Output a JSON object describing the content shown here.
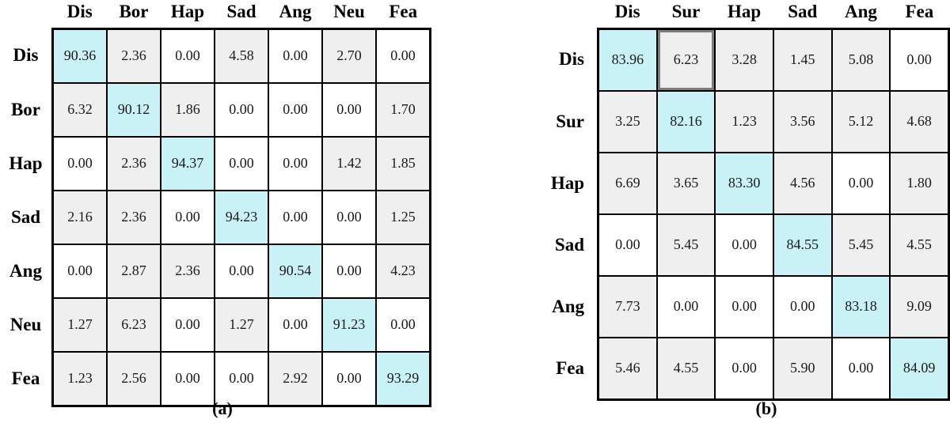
{
  "colors": {
    "diagonal_fill": "#c9f2f7",
    "nonzero_fill": "#efefef",
    "zero_fill": "#ffffff",
    "grid_border": "#000000",
    "outlined_cell_border": "#7d7d7d"
  },
  "chart_data": [
    {
      "type": "heatmap",
      "id": "a",
      "caption": "(a)",
      "col_labels": [
        "Dis",
        "Bor",
        "Hap",
        "Sad",
        "Ang",
        "Neu",
        "Fea"
      ],
      "row_labels": [
        "Dis",
        "Bor",
        "Hap",
        "Sad",
        "Ang",
        "Neu",
        "Fea"
      ],
      "values": [
        [
          90.36,
          2.36,
          0.0,
          4.58,
          0.0,
          2.7,
          0.0
        ],
        [
          6.32,
          90.12,
          1.86,
          0.0,
          0.0,
          0.0,
          1.7
        ],
        [
          0.0,
          2.36,
          94.37,
          0.0,
          0.0,
          1.42,
          1.85
        ],
        [
          2.16,
          2.36,
          0.0,
          94.23,
          0.0,
          0.0,
          1.25
        ],
        [
          0.0,
          2.87,
          2.36,
          0.0,
          90.54,
          0.0,
          4.23
        ],
        [
          1.27,
          6.23,
          0.0,
          1.27,
          0.0,
          91.23,
          0.0
        ],
        [
          1.23,
          2.56,
          0.0,
          0.0,
          2.92,
          0.0,
          93.29
        ]
      ]
    },
    {
      "type": "heatmap",
      "id": "b",
      "caption": "(b)",
      "col_labels": [
        "Dis",
        "Sur",
        "Hap",
        "Sad",
        "Ang",
        "Fea"
      ],
      "row_labels": [
        "Dis",
        "Sur",
        "Hap",
        "Sad",
        "Ang",
        "Fea"
      ],
      "values": [
        [
          83.96,
          6.23,
          3.28,
          1.45,
          5.08,
          0.0
        ],
        [
          3.25,
          82.16,
          1.23,
          3.56,
          5.12,
          4.68
        ],
        [
          6.69,
          3.65,
          83.3,
          4.56,
          0.0,
          1.8
        ],
        [
          0.0,
          5.45,
          0.0,
          84.55,
          5.45,
          4.55
        ],
        [
          7.73,
          0.0,
          0.0,
          0.0,
          83.18,
          9.09
        ],
        [
          5.46,
          4.55,
          0.0,
          5.9,
          0.0,
          84.09
        ]
      ],
      "outlined_cell": {
        "row": 0,
        "col": 1
      }
    }
  ]
}
